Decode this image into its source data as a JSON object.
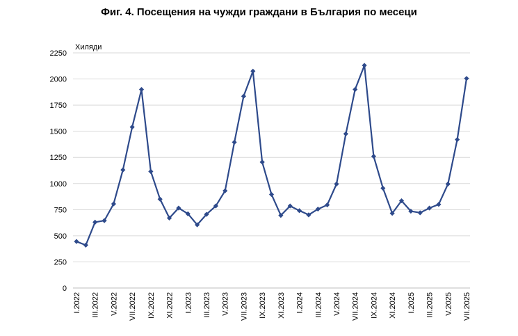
{
  "chart_data": {
    "type": "line",
    "title": "Фиг. 4. Посещения на чужди граждани в България по месеци",
    "unit_label": "Хиляди",
    "ylim": [
      0,
      2250
    ],
    "yticks": [
      0,
      250,
      500,
      750,
      1000,
      1250,
      1500,
      1750,
      2000,
      2250
    ],
    "grid": true,
    "line_color": "#2E4A8B",
    "grid_color": "#D9D9D9",
    "x_tick_labels": [
      "I.2022",
      "III.2022",
      "V.2022",
      "VII.2022",
      "IX.2022",
      "XI.2022",
      "I.2023",
      "III.2023",
      "V.2023",
      "VII.2023",
      "IX.2023",
      "XI.2023",
      "I.2024",
      "III.2024",
      "V.2024",
      "VII.2024",
      "IX.2024",
      "XI.2024",
      "I.2025",
      "III.2025",
      "V.2025",
      "VII.2025"
    ],
    "categories": [
      "I.2022",
      "II.2022",
      "III.2022",
      "IV.2022",
      "V.2022",
      "VI.2022",
      "VII.2022",
      "VIII.2022",
      "IX.2022",
      "X.2022",
      "XI.2022",
      "XII.2022",
      "I.2023",
      "II.2023",
      "III.2023",
      "IV.2023",
      "V.2023",
      "VI.2023",
      "VII.2023",
      "VIII.2023",
      "IX.2023",
      "X.2023",
      "XI.2023",
      "XII.2023",
      "I.2024",
      "II.2024",
      "III.2024",
      "IV.2024",
      "V.2024",
      "VI.2024",
      "VII.2024",
      "VIII.2024",
      "IX.2024",
      "X.2024",
      "XI.2024",
      "XII.2024",
      "I.2025",
      "II.2025",
      "III.2025",
      "IV.2025",
      "V.2025",
      "VI.2025",
      "VII.2025"
    ],
    "values": [
      445,
      410,
      630,
      645,
      805,
      1130,
      1540,
      1900,
      1115,
      850,
      670,
      765,
      710,
      605,
      705,
      785,
      930,
      1395,
      1835,
      2075,
      1205,
      895,
      695,
      785,
      740,
      700,
      755,
      795,
      995,
      1475,
      1900,
      2130,
      1260,
      955,
      715,
      835,
      735,
      720,
      765,
      800,
      995,
      1420,
      2005
    ]
  }
}
